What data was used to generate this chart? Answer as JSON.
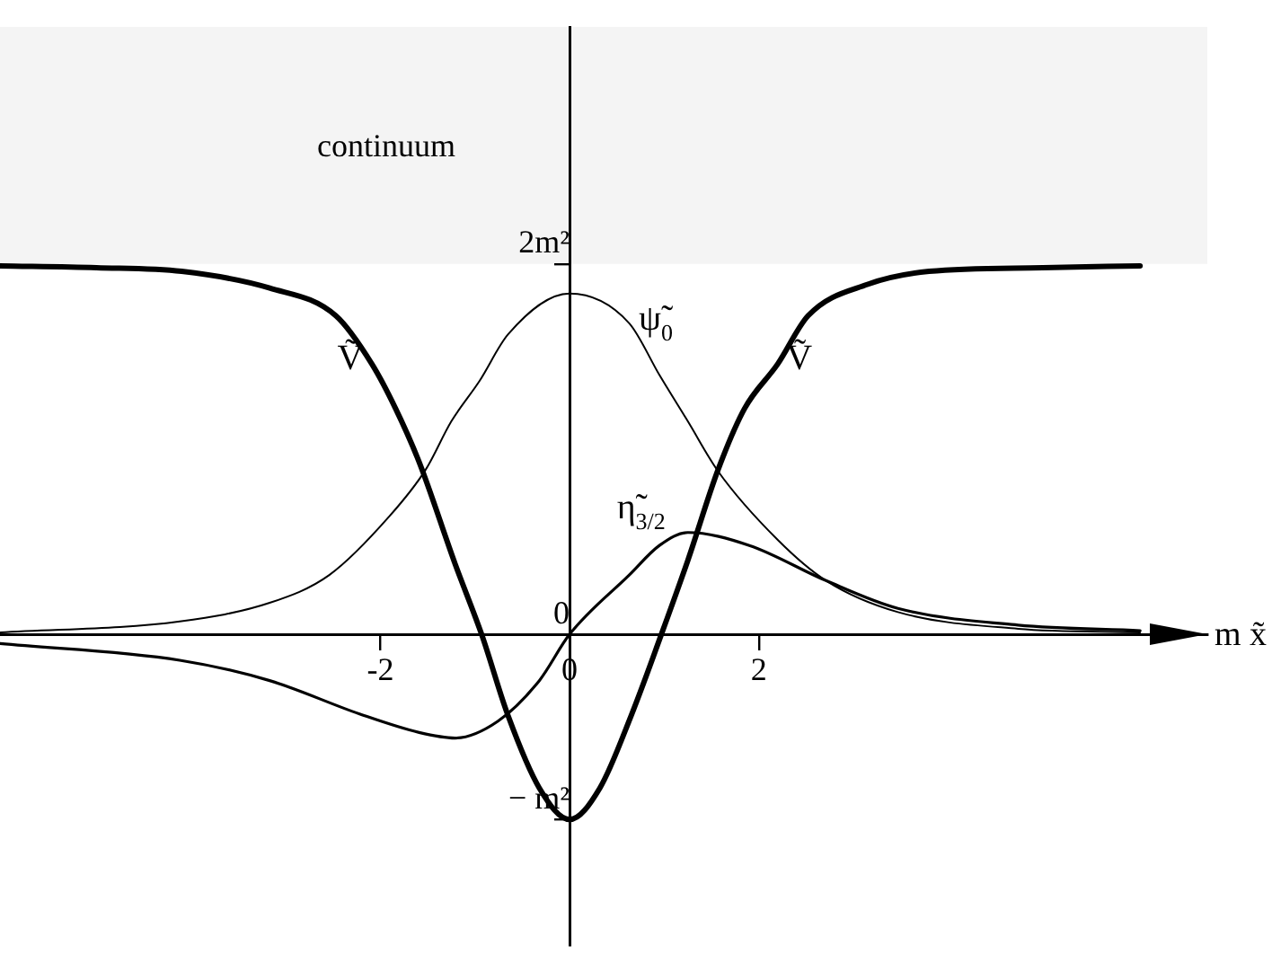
{
  "chart_data": {
    "type": "line",
    "xlabel": "m x̃",
    "xlim": [
      -6.02,
      6.74
    ],
    "ylim": [
      -1.68,
      3.28
    ],
    "xticks": [
      -2,
      0,
      2
    ],
    "yticks": [
      {
        "value": -1,
        "label": "− m²"
      },
      0,
      {
        "value": 2,
        "label": "2m²"
      }
    ],
    "grid": false,
    "legend": false,
    "marker": "none",
    "line_style": "solid",
    "bands": [
      {
        "axis": "y",
        "from": 2,
        "to": 3.28,
        "label": "continuum",
        "color": "#f4f4f4"
      }
    ],
    "series": [
      {
        "name": "Ṽ",
        "color": "#000000",
        "x": [
          -6.02,
          -5,
          -4.1,
          -3.17,
          -2.47,
          -2.09,
          -1.84,
          -1.59,
          -1.21,
          -0.93,
          -0.65,
          -0.32,
          0,
          0.32,
          0.65,
          0.97,
          1.25,
          1.57,
          1.85,
          2.2,
          2.52,
          3.15,
          3.8,
          5,
          6.03
        ],
        "values": [
          1.99,
          1.98,
          1.96,
          1.87,
          1.72,
          1.46,
          1.22,
          0.93,
          0.38,
          0,
          -0.44,
          -0.83,
          -1,
          -0.83,
          -0.44,
          0,
          0.4,
          0.89,
          1.22,
          1.46,
          1.72,
          1.89,
          1.96,
          1.98,
          1.99
        ]
      },
      {
        "name": "ψ̃$_{0}$",
        "color": "#000000",
        "x": [
          -6.02,
          -4.12,
          -3.17,
          -2.54,
          -1.9,
          -1.52,
          -1.25,
          -0.95,
          -0.65,
          0,
          0.63,
          0.95,
          1.25,
          1.57,
          2.2,
          2.71,
          3.47,
          4.74,
          6.03
        ],
        "values": [
          0.01,
          0.07,
          0.17,
          0.32,
          0.64,
          0.89,
          1.15,
          1.37,
          1.62,
          1.84,
          1.68,
          1.4,
          1.15,
          0.88,
          0.51,
          0.29,
          0.12,
          0.03,
          0.01
        ]
      },
      {
        "name": "η̃$_{3/2}$",
        "color": "#000000",
        "x": [
          -6.02,
          -4.12,
          -3.17,
          -2.22,
          -1.59,
          -1.21,
          -0.76,
          -0.32,
          0,
          0.63,
          0.95,
          1.25,
          1.9,
          2.71,
          3.47,
          4.74,
          6.03
        ],
        "values": [
          -0.05,
          -0.14,
          -0.25,
          -0.43,
          -0.53,
          -0.56,
          -0.47,
          -0.25,
          0,
          0.32,
          0.48,
          0.55,
          0.48,
          0.29,
          0.14,
          0.05,
          0.02
        ]
      }
    ]
  }
}
